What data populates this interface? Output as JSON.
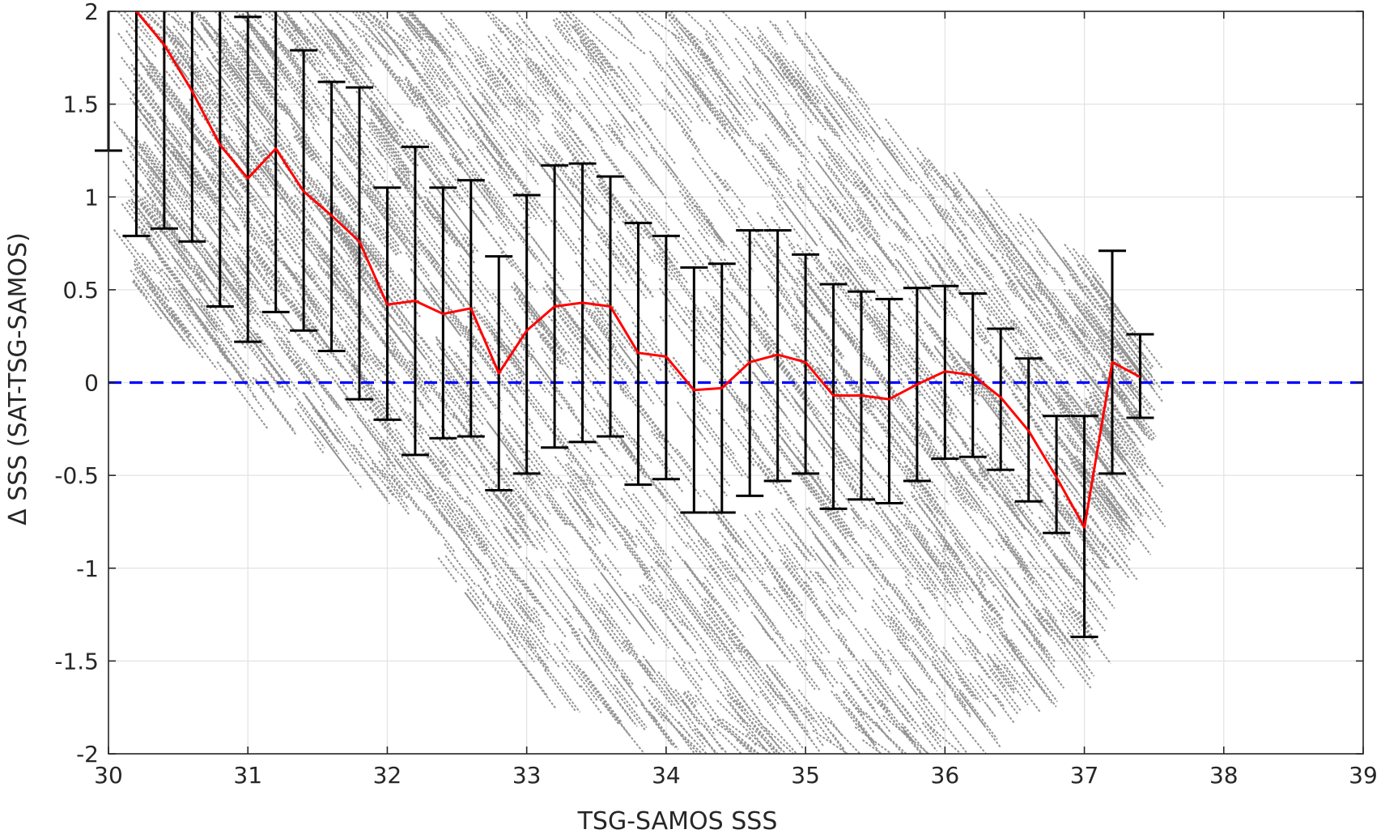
{
  "chart_data": {
    "type": "scatter",
    "title": "",
    "xlabel": "TSG-SAMOS SSS",
    "ylabel": "Δ SSS (SAT-TSG-SAMOS)",
    "xlim": [
      30,
      39
    ],
    "ylim": [
      -2,
      2
    ],
    "xticks": [
      30,
      31,
      32,
      33,
      34,
      35,
      36,
      37,
      38,
      39
    ],
    "xtick_labels": [
      "30",
      "31",
      "32",
      "33",
      "34",
      "35",
      "36",
      "37",
      "38",
      "39"
    ],
    "yticks": [
      -2,
      -1.5,
      -1,
      -0.5,
      0,
      0.5,
      1,
      1.5,
      2
    ],
    "ytick_labels": [
      "-2",
      "-1.5",
      "-1",
      "-0.5",
      "0",
      "0.5",
      "1",
      "1.5",
      "2"
    ],
    "grid": true,
    "scatter_color": "#808080",
    "scatter_note_slope": -1,
    "scatter_envelope": {
      "x": [
        30.2,
        31.0,
        32.0,
        33.0,
        34.0,
        35.0,
        36.0,
        37.0,
        37.4
      ],
      "upper": [
        2.0,
        2.0,
        2.0,
        2.0,
        2.0,
        1.9,
        1.1,
        0.7,
        0.3
      ],
      "lower": [
        0.5,
        -0.1,
        -0.6,
        -1.6,
        -2.0,
        -2.0,
        -2.0,
        -1.4,
        -0.7
      ]
    },
    "series": [
      {
        "kind": "mean",
        "color": "#ff0000",
        "x": [
          30.2,
          30.4,
          30.6,
          30.8,
          31.0,
          31.2,
          31.4,
          31.6,
          31.8,
          32.0,
          32.2,
          32.4,
          32.6,
          32.8,
          33.0,
          33.2,
          33.4,
          33.6,
          33.8,
          34.0,
          34.2,
          34.4,
          34.6,
          34.8,
          35.0,
          35.2,
          35.4,
          35.6,
          35.8,
          36.0,
          36.2,
          36.4,
          36.6,
          36.8,
          37.0,
          37.2,
          37.4
        ],
        "y": [
          2.0,
          1.82,
          1.57,
          1.28,
          1.1,
          1.26,
          1.03,
          0.9,
          0.76,
          0.42,
          0.44,
          0.37,
          0.4,
          0.05,
          0.28,
          0.41,
          0.43,
          0.41,
          0.16,
          0.14,
          -0.04,
          -0.03,
          0.11,
          0.15,
          0.11,
          -0.07,
          -0.07,
          -0.09,
          -0.01,
          0.06,
          0.04,
          -0.08,
          -0.26,
          -0.51,
          -0.78,
          0.11,
          0.03
        ]
      },
      {
        "kind": "errorbar",
        "color": "#000000",
        "x": [
          30.0,
          30.2,
          30.4,
          30.6,
          30.8,
          31.0,
          31.2,
          31.4,
          31.6,
          31.8,
          32.0,
          32.2,
          32.4,
          32.6,
          32.8,
          33.0,
          33.2,
          33.4,
          33.6,
          33.8,
          34.0,
          34.2,
          34.4,
          34.6,
          34.8,
          35.0,
          35.2,
          35.4,
          35.6,
          35.8,
          36.0,
          36.2,
          36.4,
          36.6,
          36.8,
          37.0,
          37.2,
          37.4
        ],
        "low": [
          1.25,
          0.79,
          0.83,
          0.76,
          0.41,
          0.22,
          0.38,
          0.28,
          0.17,
          -0.09,
          -0.2,
          -0.39,
          -0.3,
          -0.29,
          -0.58,
          -0.49,
          -0.35,
          -0.32,
          -0.29,
          -0.55,
          -0.52,
          -0.7,
          -0.7,
          -0.61,
          -0.53,
          -0.49,
          -0.68,
          -0.63,
          -0.65,
          -0.53,
          -0.41,
          -0.4,
          -0.47,
          -0.64,
          -0.81,
          -1.37,
          -0.49,
          -0.19
        ],
        "high": [
          2.0,
          2.0,
          2.0,
          2.0,
          2.0,
          1.97,
          2.0,
          1.79,
          1.62,
          1.59,
          1.05,
          1.27,
          1.05,
          1.09,
          0.68,
          1.01,
          1.17,
          1.18,
          1.11,
          0.86,
          0.79,
          0.62,
          0.64,
          0.82,
          0.82,
          0.69,
          0.53,
          0.49,
          0.45,
          0.51,
          0.52,
          0.48,
          0.29,
          0.13,
          -0.18,
          -0.18,
          0.71,
          0.26
        ]
      },
      {
        "kind": "reference",
        "color": "#0000ff",
        "style": "dashed",
        "y": 0
      }
    ]
  }
}
